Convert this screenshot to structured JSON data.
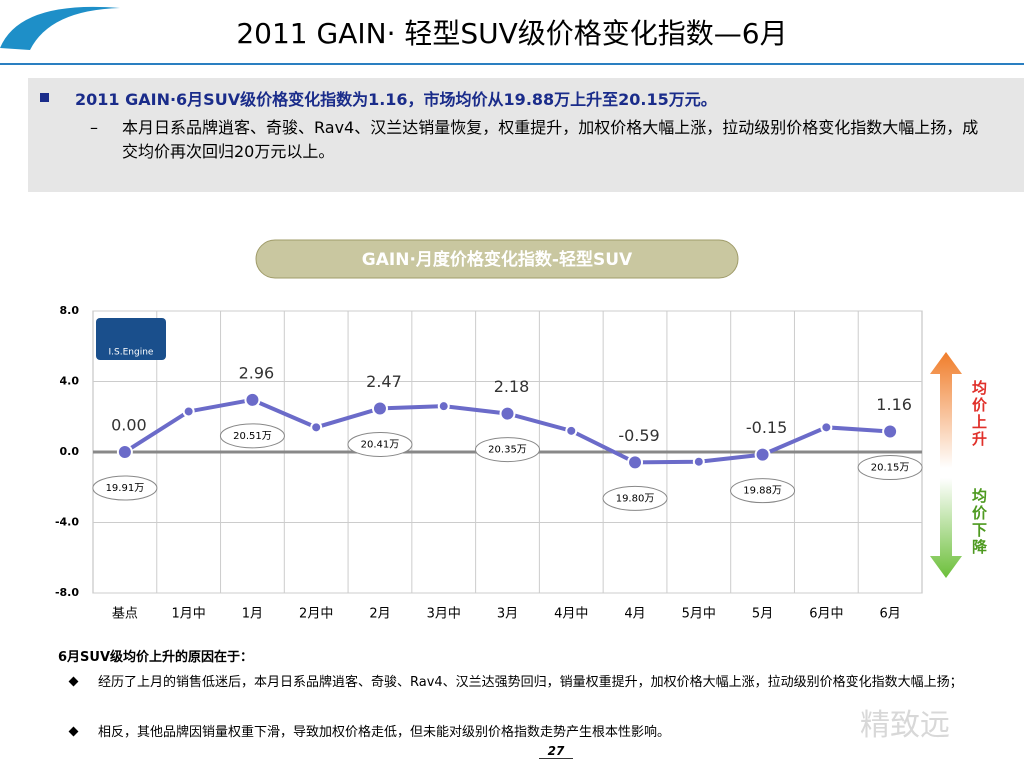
{
  "slide": {
    "title": "2011 GAIN· 轻型SUV级价格变化指数—6月",
    "summary": "2011 GAIN·6月SUV级价格变化指数为1.16，市场均价从19.88万上升至20.15万元。",
    "detail": "本月日系品牌逍客、奇骏、Rav4、汉兰达销量恢复，权重提升，加权价格大幅上涨，拉动级别价格变化指数大幅上扬，成交均价再次回归20万元以上。",
    "reasons_title": "6月SUV级均价上升的原因在于：",
    "reasons": [
      "经历了上月的销售低迷后，本月日系品牌逍客、奇骏、Rav4、汉兰达强势回归，销量权重提升，加权价格大幅上涨，拉动级别价格变化指数大幅上扬；",
      "相反，其他品牌因销量权重下滑，导致加权价格走低，但未能对级别价格指数走势产生根本性影响。"
    ],
    "page_number": "27",
    "logo": "I.S.Engine",
    "watermark": "精致远"
  },
  "chart_data": {
    "type": "line",
    "title": "GAIN·月度价格变化指数-轻型SUV",
    "categories": [
      "基点",
      "1月中",
      "1月",
      "2月中",
      "2月",
      "3月中",
      "3月",
      "4月中",
      "4月",
      "5月中",
      "5月",
      "6月中",
      "6月"
    ],
    "series": [
      {
        "name": "GAIN",
        "color": "#6b6bc9",
        "values": [
          0.0,
          2.3,
          2.96,
          1.4,
          2.47,
          2.6,
          2.18,
          1.2,
          -0.59,
          -0.55,
          -0.15,
          1.4,
          1.16
        ],
        "value_labels": [
          "0.00",
          null,
          "2.96",
          null,
          "2.47",
          null,
          "2.18",
          null,
          "-0.59",
          null,
          "-0.15",
          null,
          "1.16"
        ]
      }
    ],
    "price_labels": [
      "19.91万",
      null,
      "20.51万",
      null,
      "20.41万",
      null,
      "20.35万",
      null,
      "19.80万",
      null,
      "19.88万",
      null,
      "20.15万"
    ],
    "ylim": [
      -8,
      8
    ],
    "yticks": [
      {
        "value": 8,
        "label": "8.0"
      },
      {
        "value": 4,
        "label": "4.0"
      },
      {
        "value": 0,
        "label": "0.0"
      },
      {
        "value": -4,
        "label": "-4.0"
      },
      {
        "value": -8,
        "label": "-8.0"
      }
    ],
    "grid": true,
    "up_label": "均价上升",
    "down_label": "均价下降"
  }
}
